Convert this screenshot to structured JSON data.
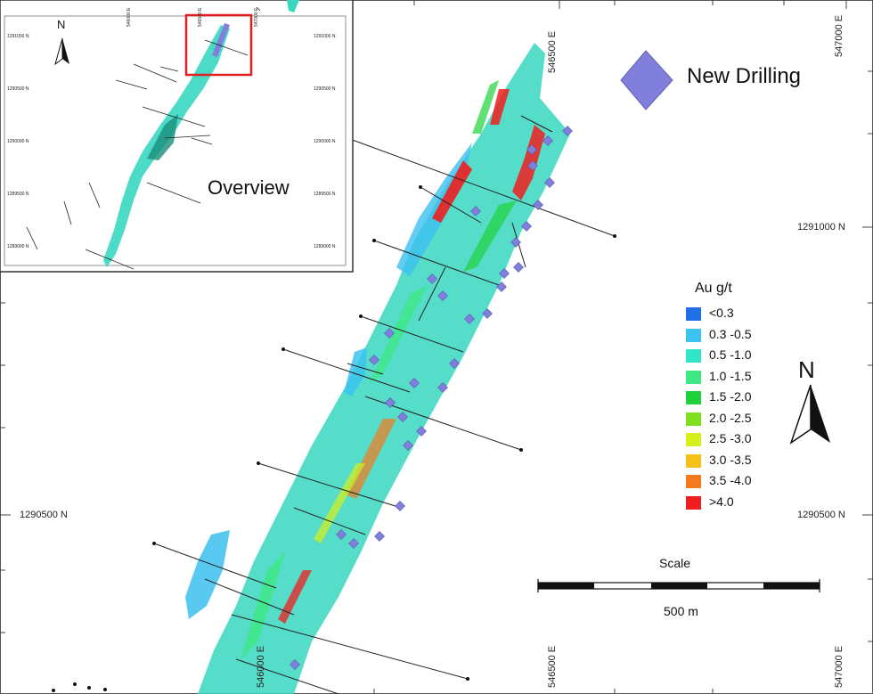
{
  "legend": {
    "title": "Au g/t",
    "classes": [
      {
        "label": "<0.3",
        "color": "#1f6fe8"
      },
      {
        "label": "0.3 -0.5",
        "color": "#3cc3f0"
      },
      {
        "label": "0.5 -1.0",
        "color": "#2ee6c8"
      },
      {
        "label": "1.0 -1.5",
        "color": "#3ee882"
      },
      {
        "label": "1.5 -2.0",
        "color": "#1fd13a"
      },
      {
        "label": "2.0 -2.5",
        "color": "#7ee01f"
      },
      {
        "label": "2.5 -3.0",
        "color": "#d6ef1a"
      },
      {
        "label": "3.0 -3.5",
        "color": "#f5c018"
      },
      {
        "label": "3.5 -4.0",
        "color": "#f57a1e"
      },
      {
        "label": ">4.0",
        "color": "#f01e1e"
      }
    ]
  },
  "new_drilling": {
    "label": "New Drilling",
    "color": "#8080dc"
  },
  "overview": {
    "title": "Overview",
    "north": "N",
    "highlight_color": "#e02020",
    "coords": {
      "top_row": [
        "546000 E",
        "546500 E",
        "547000 E"
      ],
      "left_col": [
        "1291000 N",
        "1290500 N",
        "1290000 N",
        "1289500 N",
        "1289000 N"
      ],
      "right_col": [
        "1291000 N",
        "1290500 N",
        "1290000 N",
        "1289500 N",
        "1289000 N"
      ]
    }
  },
  "map": {
    "north": "N",
    "coords": {
      "top": [
        "546500 E",
        "547000 E"
      ],
      "bottom": [
        "546000 E",
        "546500 E",
        "547000 E"
      ],
      "left": [
        "1290500 N"
      ],
      "right": [
        "1291000 N",
        "1290500 N"
      ]
    }
  },
  "scale": {
    "title": "Scale",
    "value": "500 m"
  }
}
